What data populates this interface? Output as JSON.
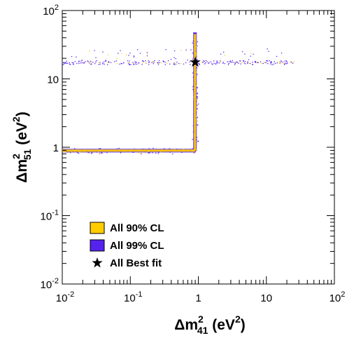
{
  "chart_data": {
    "type": "scatter",
    "x_scale": "log",
    "y_scale": "log",
    "xlim": [
      0.01,
      100
    ],
    "ylim": [
      0.01,
      100
    ],
    "xlabel": {
      "base": "Δm",
      "sup": "2",
      "sub": "41",
      "unit": " (eV",
      "unit_sup": "2",
      "close": ")"
    },
    "ylabel": {
      "base": "Δm",
      "sup": "2",
      "sub": "51",
      "unit": " (eV",
      "unit_sup": "2",
      "close": ")"
    },
    "x_ticks": [
      {
        "value": 0.01,
        "base": "10",
        "exp": "-2"
      },
      {
        "value": 0.1,
        "base": "10",
        "exp": "-1"
      },
      {
        "value": 1,
        "base": "1",
        "exp": ""
      },
      {
        "value": 10,
        "base": "10",
        "exp": ""
      },
      {
        "value": 100,
        "base": "10",
        "exp": "2"
      }
    ],
    "y_ticks": [
      {
        "value": 0.01,
        "base": "10",
        "exp": "-2"
      },
      {
        "value": 0.1,
        "base": "10",
        "exp": "-1"
      },
      {
        "value": 1,
        "base": "1",
        "exp": ""
      },
      {
        "value": 10,
        "base": "10",
        "exp": ""
      },
      {
        "value": 100,
        "base": "10",
        "exp": "2"
      }
    ],
    "grid": false,
    "legend_position": "bottom-left",
    "series": [
      {
        "name": "All 90% CL",
        "color": "#ffcc00",
        "regions": [
          {
            "label": "horizontal band",
            "x": [
              0.01,
              0.9
            ],
            "y": [
              0.86,
              0.93
            ]
          },
          {
            "label": "vertical band",
            "x": [
              0.86,
              0.93
            ],
            "y": [
              0.9,
              45
            ]
          },
          {
            "label": "upper strip",
            "x": [
              0.02,
              25
            ],
            "y": [
              16,
              27
            ]
          }
        ]
      },
      {
        "name": "All 99% CL",
        "color": "#5522ee",
        "regions": [
          {
            "label": "horizontal band",
            "x": [
              0.01,
              0.92
            ],
            "y": [
              0.84,
              0.95
            ]
          },
          {
            "label": "vertical band",
            "x": [
              0.84,
              0.95
            ],
            "y": [
              0.88,
              48
            ]
          },
          {
            "label": "upper strip",
            "x": [
              0.01,
              25
            ],
            "y": [
              15.5,
              28
            ]
          }
        ]
      },
      {
        "name": "All Best fit",
        "marker": "star",
        "color": "#000000",
        "points": [
          {
            "x": 0.9,
            "y": 17.5
          }
        ]
      }
    ]
  }
}
